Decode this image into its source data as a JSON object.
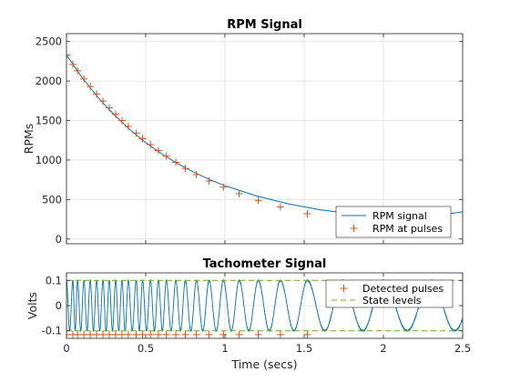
{
  "figure": {
    "background": "#ffffff"
  },
  "chart_data": [
    {
      "type": "line",
      "title": "RPM Signal",
      "xlabel": "",
      "ylabel": "RPMs",
      "xlim": [
        0,
        2.5
      ],
      "ylim": [
        -60,
        2600
      ],
      "x_ticks": [
        0,
        0.5,
        1,
        1.5,
        2,
        2.5
      ],
      "y_ticks": [
        0,
        500,
        1000,
        1500,
        2000,
        2500
      ],
      "y_tick_labels": [
        "0",
        "500",
        "1000",
        "1500",
        "2000",
        "2500"
      ],
      "grid": true,
      "legend": {
        "placement": "lower-right",
        "entries": [
          "RPM signal",
          "RPM at pulses"
        ]
      },
      "series": [
        {
          "name": "RPM signal",
          "type": "line",
          "color": "#0072bd",
          "x": [
            0,
            0.1,
            0.2,
            0.3,
            0.4,
            0.5,
            0.6,
            0.7,
            0.8,
            0.9,
            1.0,
            1.2,
            1.4,
            1.6,
            1.8,
            2.0,
            2.2,
            2.4,
            2.5
          ],
          "y": [
            2330,
            2040,
            1790,
            1575,
            1385,
            1220,
            1080,
            955,
            850,
            755,
            675,
            545,
            445,
            370,
            320,
            295,
            290,
            315,
            345
          ]
        },
        {
          "name": "RPM at pulses",
          "type": "scatter",
          "marker": "+",
          "color": "#d95319",
          "x": [
            0.0,
            0.04,
            0.07,
            0.11,
            0.15,
            0.19,
            0.23,
            0.27,
            0.31,
            0.35,
            0.39,
            0.44,
            0.48,
            0.53,
            0.58,
            0.63,
            0.69,
            0.75,
            0.82,
            0.9,
            0.99,
            1.09,
            1.21,
            1.35,
            1.52
          ],
          "y": [
            2330,
            2210,
            2130,
            2025,
            1930,
            1835,
            1745,
            1660,
            1580,
            1500,
            1425,
            1340,
            1270,
            1195,
            1120,
            1050,
            970,
            895,
            815,
            735,
            655,
            575,
            490,
            405,
            320
          ]
        }
      ]
    },
    {
      "type": "line",
      "title": "Tachometer Signal",
      "xlabel": "Time (secs)",
      "ylabel": "Volts",
      "xlim": [
        0,
        2.5
      ],
      "ylim": [
        -0.13,
        0.13
      ],
      "x_ticks": [
        0,
        0.5,
        1,
        1.5,
        2,
        2.5
      ],
      "x_tick_labels": [
        "0",
        "0.5",
        "1",
        "1.5",
        "2",
        "2.5"
      ],
      "y_ticks": [
        -0.1,
        0,
        0.1
      ],
      "y_tick_labels": [
        "-0.1",
        "0",
        "0.1"
      ],
      "grid": true,
      "legend": {
        "placement": "top-right",
        "entries": [
          "Detected pulses",
          "State levels"
        ]
      },
      "signal": {
        "name": "Tachometer",
        "color": "#0072bd",
        "amplitude": 0.1,
        "pulse_times": [
          0.0,
          0.04,
          0.07,
          0.11,
          0.15,
          0.19,
          0.23,
          0.27,
          0.31,
          0.35,
          0.39,
          0.44,
          0.48,
          0.53,
          0.58,
          0.63,
          0.69,
          0.75,
          0.82,
          0.9,
          0.99,
          1.09,
          1.21,
          1.35,
          1.52,
          1.74,
          2.0,
          2.3
        ]
      },
      "series": [
        {
          "name": "Detected pulses",
          "type": "scatter",
          "marker": "+",
          "color": "#d95319",
          "x": [
            0.0,
            0.04,
            0.07,
            0.11,
            0.15,
            0.19,
            0.23,
            0.27,
            0.31,
            0.35,
            0.39,
            0.44,
            0.48,
            0.53,
            0.58,
            0.63,
            0.69,
            0.75,
            0.82,
            0.9,
            0.99,
            1.09,
            1.21,
            1.35,
            1.52
          ],
          "y": [
            -0.115,
            -0.115,
            -0.115,
            -0.115,
            -0.115,
            -0.115,
            -0.115,
            -0.115,
            -0.115,
            -0.115,
            -0.115,
            -0.115,
            -0.115,
            -0.115,
            -0.115,
            -0.115,
            -0.115,
            -0.115,
            -0.115,
            -0.115,
            -0.115,
            -0.115,
            -0.115,
            -0.115,
            -0.115
          ]
        },
        {
          "name": "State levels",
          "type": "hline",
          "style": "dashed",
          "color": "#77ac30",
          "y": [
            0.1,
            -0.1
          ]
        }
      ]
    }
  ]
}
